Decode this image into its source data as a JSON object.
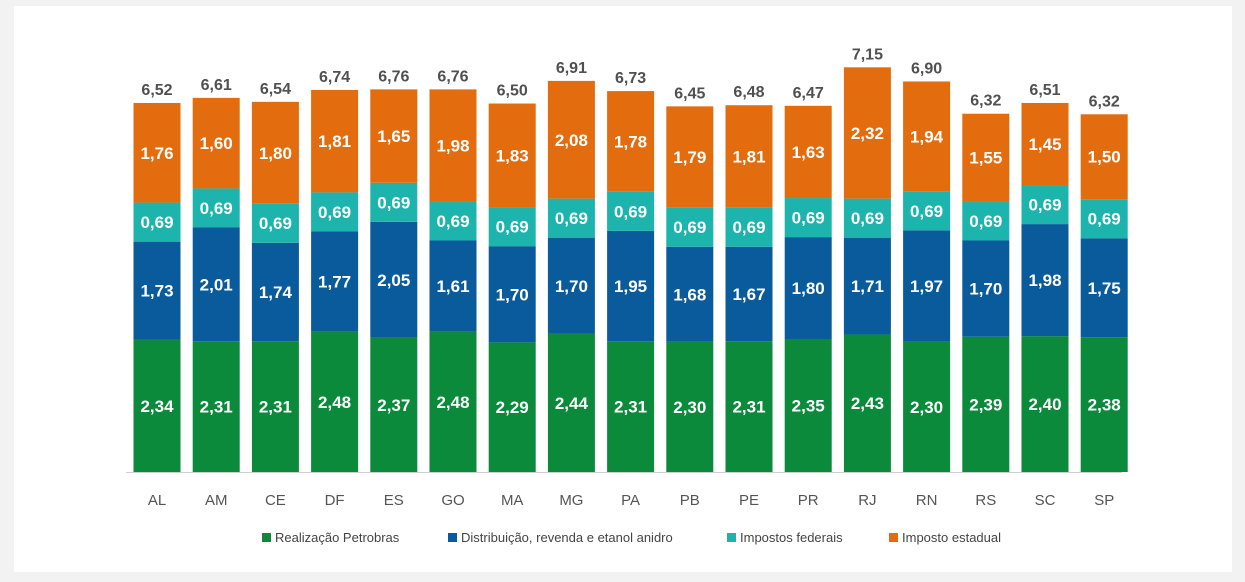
{
  "chart_data": {
    "type": "bar",
    "stacked": true,
    "categories": [
      "AL",
      "AM",
      "CE",
      "DF",
      "ES",
      "GO",
      "MA",
      "MG",
      "PA",
      "PB",
      "PE",
      "PR",
      "RJ",
      "RN",
      "RS",
      "SC",
      "SP"
    ],
    "series": [
      {
        "name": "Realização Petrobras",
        "color": "#0b8a3b",
        "values": [
          2.34,
          2.31,
          2.31,
          2.48,
          2.37,
          2.48,
          2.29,
          2.44,
          2.31,
          2.3,
          2.31,
          2.35,
          2.43,
          2.3,
          2.39,
          2.4,
          2.38
        ],
        "labels": [
          "2,34",
          "2,31",
          "2,31",
          "2,48",
          "2,37",
          "2,48",
          "2,29",
          "2,44",
          "2,31",
          "2,30",
          "2,31",
          "2,35",
          "2,43",
          "2,30",
          "2,39",
          "2,40",
          "2,38"
        ]
      },
      {
        "name": "Distribuição, revenda e etanol anidro",
        "color": "#0a5b9b",
        "values": [
          1.73,
          2.01,
          1.74,
          1.77,
          2.05,
          1.61,
          1.7,
          1.7,
          1.95,
          1.68,
          1.67,
          1.8,
          1.71,
          1.97,
          1.7,
          1.98,
          1.75
        ],
        "labels": [
          "1,73",
          "2,01",
          "1,74",
          "1,77",
          "2,05",
          "1,61",
          "1,70",
          "1,70",
          "1,95",
          "1,68",
          "1,67",
          "1,80",
          "1,71",
          "1,97",
          "1,70",
          "1,98",
          "1,75"
        ]
      },
      {
        "name": "Impostos federais",
        "color": "#1cb4ac",
        "values": [
          0.69,
          0.69,
          0.69,
          0.69,
          0.69,
          0.69,
          0.69,
          0.69,
          0.69,
          0.69,
          0.69,
          0.69,
          0.69,
          0.69,
          0.69,
          0.69,
          0.69
        ],
        "labels": [
          "0,69",
          "0,69",
          "0,69",
          "0,69",
          "0,69",
          "0,69",
          "0,69",
          "0,69",
          "0,69",
          "0,69",
          "0,69",
          "0,69",
          "0,69",
          "0,69",
          "0,69",
          "0,69",
          "0,69"
        ]
      },
      {
        "name": "Imposto estadual",
        "color": "#e26c0e",
        "values": [
          1.76,
          1.6,
          1.8,
          1.81,
          1.65,
          1.98,
          1.83,
          2.08,
          1.78,
          1.79,
          1.81,
          1.63,
          2.32,
          1.94,
          1.55,
          1.45,
          1.5
        ],
        "labels": [
          "1,76",
          "1,60",
          "1,80",
          "1,81",
          "1,65",
          "1,98",
          "1,83",
          "2,08",
          "1,78",
          "1,79",
          "1,81",
          "1,63",
          "2,32",
          "1,94",
          "1,55",
          "1,45",
          "1,50"
        ]
      }
    ],
    "totals": [
      "6,52",
      "6,61",
      "6,54",
      "6,74",
      "6,76",
      "6,76",
      "6,50",
      "6,91",
      "6,73",
      "6,45",
      "6,48",
      "6,47",
      "7,15",
      "6,90",
      "6,32",
      "6,51",
      "6,32"
    ],
    "title": "",
    "xlabel": "",
    "ylabel": "",
    "ylim": [
      0,
      7.15
    ],
    "grid": false,
    "legend_position": "bottom"
  }
}
